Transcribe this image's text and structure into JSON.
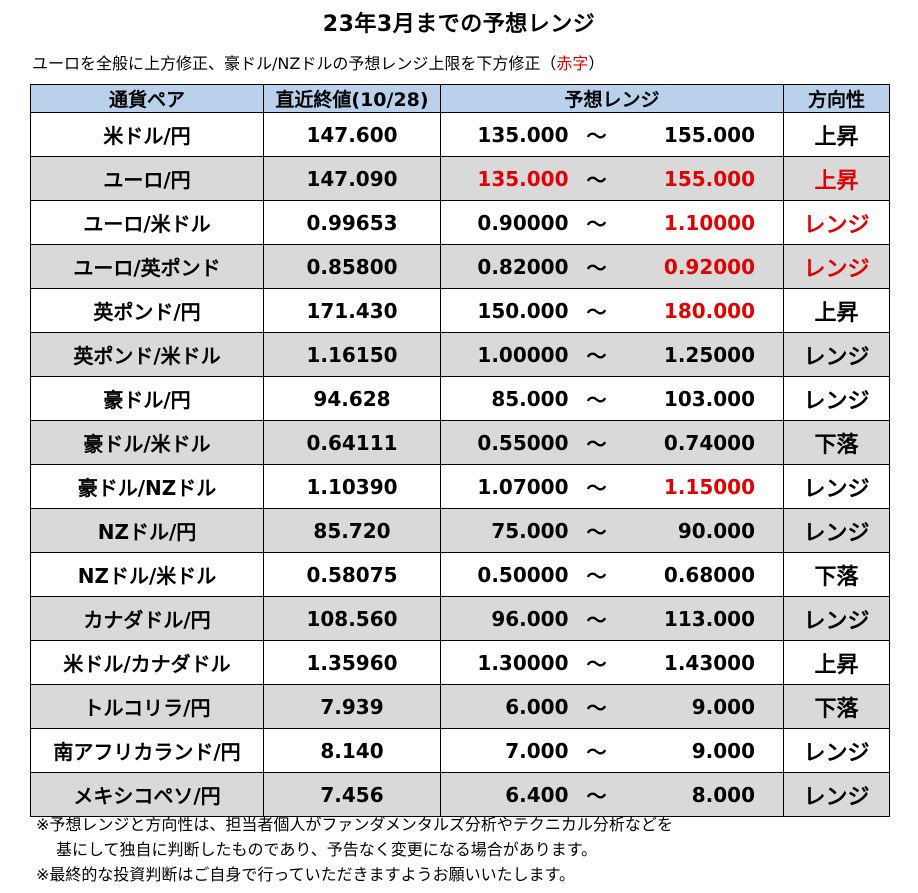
{
  "title": "23年3月までの予想レンジ",
  "subtitle": {
    "text": "ユーロを全般に上方修正、豪ドル/NZドルの予想レンジ上限を下方修正（",
    "red": "赤字",
    "close": "）"
  },
  "colors": {
    "header_bg": "#b9d1ea",
    "shade_bg": "#d9d9d9",
    "red": "#e00000"
  },
  "table": {
    "headers": [
      "通貨ペア",
      "直近終値(10/28)",
      "予想レンジ",
      "方向性"
    ],
    "rows": [
      {
        "pair": "米ドル/円",
        "close": "147.600",
        "low": "135.000",
        "tilde": "～",
        "high": "155.000",
        "dir": "上昇",
        "shade": false,
        "red_low": false,
        "red_high": false,
        "red_dir": false
      },
      {
        "pair": "ユーロ/円",
        "close": "147.090",
        "low": "135.000",
        "tilde": "～",
        "high": "155.000",
        "dir": "上昇",
        "shade": true,
        "red_low": true,
        "red_high": true,
        "red_dir": true
      },
      {
        "pair": "ユーロ/米ドル",
        "close": "0.99653",
        "low": "0.90000",
        "tilde": "～",
        "high": "1.10000",
        "dir": "レンジ",
        "shade": false,
        "red_low": false,
        "red_high": true,
        "red_dir": true
      },
      {
        "pair": "ユーロ/英ポンド",
        "close": "0.85800",
        "low": "0.82000",
        "tilde": "～",
        "high": "0.92000",
        "dir": "レンジ",
        "shade": true,
        "red_low": false,
        "red_high": true,
        "red_dir": true
      },
      {
        "pair": "英ポンド/円",
        "close": "171.430",
        "low": "150.000",
        "tilde": "～",
        "high": "180.000",
        "dir": "上昇",
        "shade": false,
        "red_low": false,
        "red_high": true,
        "red_dir": false
      },
      {
        "pair": "英ポンド/米ドル",
        "close": "1.16150",
        "low": "1.00000",
        "tilde": "～",
        "high": "1.25000",
        "dir": "レンジ",
        "shade": true,
        "red_low": false,
        "red_high": false,
        "red_dir": false
      },
      {
        "pair": "豪ドル/円",
        "close": "94.628",
        "low": "85.000",
        "tilde": "～",
        "high": "103.000",
        "dir": "レンジ",
        "shade": false,
        "red_low": false,
        "red_high": false,
        "red_dir": false
      },
      {
        "pair": "豪ドル/米ドル",
        "close": "0.64111",
        "low": "0.55000",
        "tilde": "～",
        "high": "0.74000",
        "dir": "下落",
        "shade": true,
        "red_low": false,
        "red_high": false,
        "red_dir": false
      },
      {
        "pair": "豪ドル/NZドル",
        "close": "1.10390",
        "low": "1.07000",
        "tilde": "～",
        "high": "1.15000",
        "dir": "レンジ",
        "shade": false,
        "red_low": false,
        "red_high": true,
        "red_dir": false
      },
      {
        "pair": "NZドル/円",
        "close": "85.720",
        "low": "75.000",
        "tilde": "～",
        "high": "90.000",
        "dir": "レンジ",
        "shade": true,
        "red_low": false,
        "red_high": false,
        "red_dir": false
      },
      {
        "pair": "NZドル/米ドル",
        "close": "0.58075",
        "low": "0.50000",
        "tilde": "～",
        "high": "0.68000",
        "dir": "下落",
        "shade": false,
        "red_low": false,
        "red_high": false,
        "red_dir": false
      },
      {
        "pair": "カナダドル/円",
        "close": "108.560",
        "low": "96.000",
        "tilde": "～",
        "high": "113.000",
        "dir": "レンジ",
        "shade": true,
        "red_low": false,
        "red_high": false,
        "red_dir": false
      },
      {
        "pair": "米ドル/カナダドル",
        "close": "1.35960",
        "low": "1.30000",
        "tilde": "～",
        "high": "1.43000",
        "dir": "上昇",
        "shade": false,
        "red_low": false,
        "red_high": false,
        "red_dir": false
      },
      {
        "pair": "トルコリラ/円",
        "close": "7.939",
        "low": "6.000",
        "tilde": "～",
        "high": "9.000",
        "dir": "下落",
        "shade": true,
        "red_low": false,
        "red_high": false,
        "red_dir": false
      },
      {
        "pair": "南アフリカランド/円",
        "close": "8.140",
        "low": "7.000",
        "tilde": "～",
        "high": "9.000",
        "dir": "レンジ",
        "shade": false,
        "red_low": false,
        "red_high": false,
        "red_dir": false
      },
      {
        "pair": "メキシコペソ/円",
        "close": "7.456",
        "low": "6.400",
        "tilde": "～",
        "high": "8.000",
        "dir": "レンジ",
        "shade": true,
        "red_low": false,
        "red_high": false,
        "red_dir": false
      }
    ]
  },
  "notes": [
    "※予想レンジと方向性は、担当者個人がファンダメンタルズ分析やテクニカル分析などを",
    "基にして独自に判断したものであり、予告なく変更になる場合があります。",
    "※最終的な投資判断はご自身で行っていただきますようお願いいたします。"
  ]
}
